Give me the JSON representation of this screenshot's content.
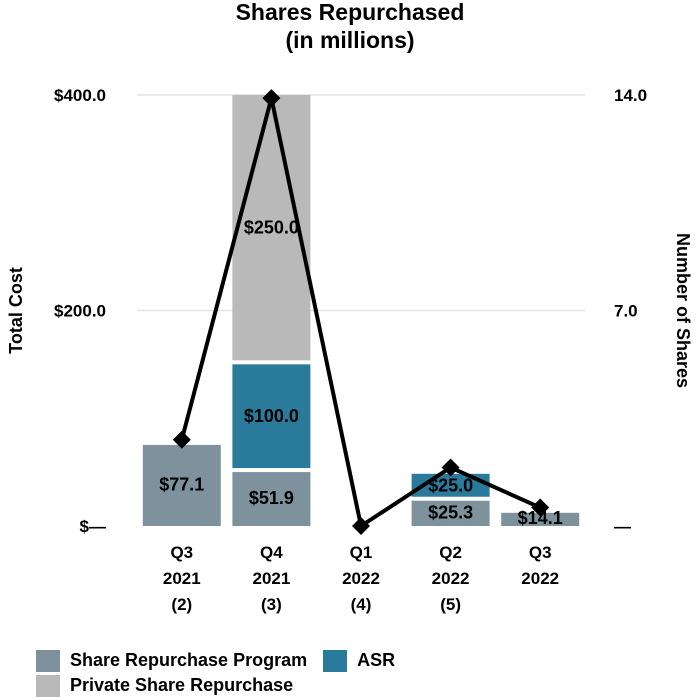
{
  "chart_data": {
    "type": "bar",
    "title": [
      "Shares Repurchased",
      "(in millions)"
    ],
    "ylabel": "Total Cost",
    "y2label": "Number of Shares",
    "ylim": [
      0,
      400
    ],
    "y2lim": [
      0,
      14
    ],
    "yticks": [
      "$—",
      "$200.0",
      "$400.0"
    ],
    "y2ticks": [
      "—",
      "7.0",
      "14.0"
    ],
    "categories": [
      [
        "Q3",
        "2021",
        "(2)"
      ],
      [
        "Q4",
        "2021",
        "(3)"
      ],
      [
        "Q1",
        "2022",
        "(4)"
      ],
      [
        "Q2",
        "2022",
        "(5)"
      ],
      [
        "Q3",
        "2022"
      ]
    ],
    "series": [
      {
        "name": "Share Repurchase Program",
        "color": "#7d929c",
        "values": [
          77.1,
          51.9,
          0,
          25.3,
          14.1
        ],
        "labels": [
          "$77.1",
          "$51.9",
          "",
          "$25.3",
          "$14.1"
        ]
      },
      {
        "name": "ASR",
        "color": "#2a7b9b",
        "values": [
          0,
          100.0,
          0,
          25.0,
          0
        ],
        "labels": [
          "",
          "$100.0",
          "",
          "$25.0",
          ""
        ]
      },
      {
        "name": "Private Share Repurchase",
        "color": "#b9b9b9",
        "values": [
          0,
          250.0,
          0,
          0,
          0
        ],
        "labels": [
          "",
          "$250.0",
          "",
          "",
          ""
        ]
      }
    ],
    "line": {
      "axis": "right",
      "color": "#000000",
      "marker": "diamond",
      "values": [
        2.8,
        13.9,
        0,
        1.9,
        0.6
      ]
    },
    "grid": true,
    "legend_position": "bottom"
  },
  "legend": {
    "row1": [
      {
        "label": "Share Repurchase Program",
        "color": "#7d929c"
      },
      {
        "label": "ASR",
        "color": "#2a7b9b"
      }
    ],
    "row2": [
      {
        "label": "Private Share Repurchase",
        "color": "#b9b9b9"
      }
    ]
  }
}
